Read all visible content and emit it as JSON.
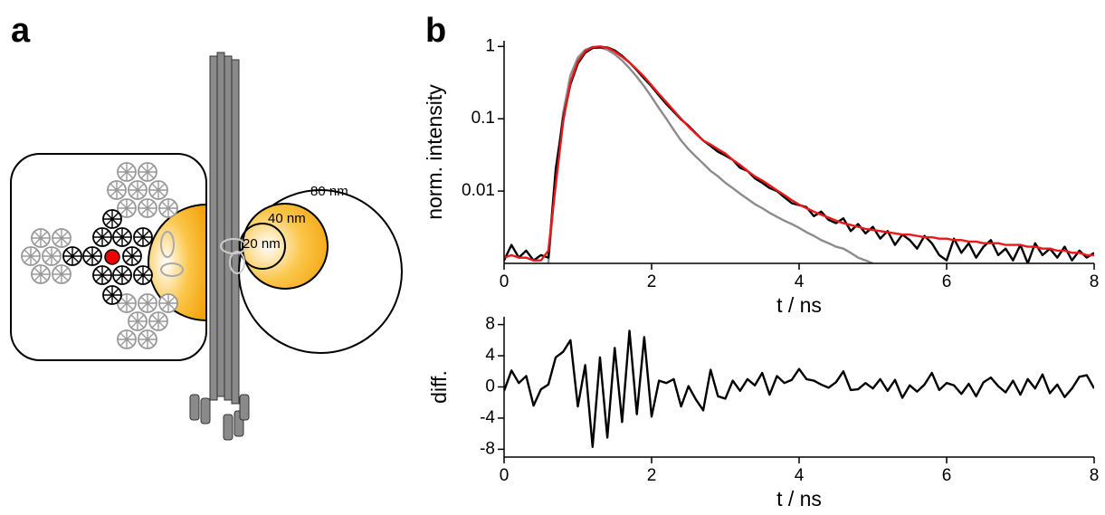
{
  "diagram": {
    "panel_label": "a",
    "labels": [
      "80 nm",
      "40 nm",
      "20 nm"
    ]
  },
  "chart_data": [
    {
      "type": "line",
      "panel_label": "b",
      "y_label": "norm. intensity",
      "x_label": "t / ns",
      "y_scale": "log",
      "xlim": [
        0,
        8
      ],
      "xticks": [
        0,
        2,
        4,
        6,
        8
      ],
      "ylim": [
        0.001,
        1.2
      ],
      "yticks": [
        0.01,
        0.1,
        1
      ],
      "x": [
        0,
        0.1,
        0.2,
        0.3,
        0.4,
        0.5,
        0.6,
        0.7,
        0.8,
        0.9,
        1,
        1.1,
        1.2,
        1.3,
        1.4,
        1.5,
        1.6,
        1.7,
        1.8,
        1.9,
        2,
        2.1,
        2.2,
        2.3,
        2.4,
        2.5,
        2.6,
        2.7,
        2.8,
        2.9,
        3,
        3.1,
        3.2,
        3.3,
        3.4,
        3.5,
        3.6,
        3.7,
        3.8,
        3.9,
        4,
        4.1,
        4.2,
        4.3,
        4.4,
        4.5,
        4.6,
        4.7,
        4.8,
        4.9,
        5,
        5.1,
        5.2,
        5.3,
        5.4,
        5.5,
        5.6,
        5.7,
        5.8,
        5.9,
        6,
        6.1,
        6.2,
        6.3,
        6.4,
        6.5,
        6.6,
        6.7,
        6.8,
        6.9,
        7,
        7.1,
        7.2,
        7.3,
        7.4,
        7.5,
        7.6,
        7.7,
        7.8,
        7.9,
        8
      ],
      "series": [
        {
          "color": "#8c8c8c",
          "values": [
            null,
            null,
            null,
            null,
            null,
            null,
            0.001,
            0.015,
            0.12,
            0.4,
            0.7,
            0.9,
            0.98,
            0.97,
            0.9,
            0.78,
            0.64,
            0.5,
            0.38,
            0.28,
            0.2,
            0.14,
            0.1,
            0.07,
            0.05,
            0.038,
            0.03,
            0.024,
            0.019,
            0.016,
            0.013,
            0.011,
            0.0092,
            0.0078,
            0.0066,
            0.0058,
            0.005,
            0.0044,
            0.0039,
            0.0035,
            0.0031,
            0.0027,
            0.0024,
            0.0021,
            0.0019,
            0.0017,
            0.0016,
            0.0014,
            0.0012,
            0.0011,
            0.001,
            null,
            null,
            null,
            null,
            null,
            null,
            null,
            null,
            null,
            null,
            null,
            null,
            null,
            null,
            null,
            null,
            null,
            null,
            null,
            null,
            null,
            null,
            null,
            null,
            null,
            null,
            null,
            null,
            null,
            null
          ]
        },
        {
          "color": "#000000",
          "values": [
            0.0011,
            0.0018,
            0.0012,
            0.0015,
            0.0011,
            0.0013,
            0.0012,
            0.02,
            0.1,
            0.3,
            0.58,
            0.82,
            0.95,
            0.97,
            0.97,
            0.88,
            0.74,
            0.6,
            0.47,
            0.36,
            0.28,
            0.21,
            0.16,
            0.125,
            0.098,
            0.08,
            0.063,
            0.05,
            0.042,
            0.035,
            0.031,
            0.027,
            0.021,
            0.019,
            0.015,
            0.013,
            0.011,
            0.01,
            0.0082,
            0.0068,
            0.0064,
            0.006,
            0.0045,
            0.0052,
            0.004,
            0.0036,
            0.0042,
            0.0028,
            0.0035,
            0.0026,
            0.0032,
            0.0022,
            0.0028,
            0.0018,
            0.0025,
            0.0021,
            0.0016,
            0.0024,
            0.0019,
            0.0013,
            0.0011,
            0.0022,
            0.0014,
            0.0019,
            0.0012,
            0.0017,
            0.0021,
            0.0013,
            0.0016,
            0.0011,
            0.0018,
            0.001,
            0.0019,
            0.0013,
            0.0016,
            0.0012,
            0.0017,
            0.0011,
            0.0015,
            0.0012,
            0.0014
          ]
        },
        {
          "color": "#e8191a",
          "values": [
            0.0012,
            0.0013,
            0.0012,
            0.0012,
            0.0011,
            0.0011,
            0.0015,
            0.012,
            0.09,
            0.32,
            0.62,
            0.86,
            0.98,
            1,
            0.96,
            0.85,
            0.72,
            0.6,
            0.48,
            0.38,
            0.29,
            0.22,
            0.17,
            0.13,
            0.1,
            0.078,
            0.062,
            0.05,
            0.044,
            0.038,
            0.033,
            0.027,
            0.023,
            0.019,
            0.016,
            0.014,
            0.012,
            0.0102,
            0.0088,
            0.0075,
            0.0065,
            0.0058,
            0.0052,
            0.0047,
            0.0043,
            0.0039,
            0.0036,
            0.0034,
            0.0032,
            0.003,
            0.0029,
            0.0028,
            0.0027,
            0.0026,
            0.0025,
            0.0025,
            0.0024,
            0.0023,
            0.0023,
            0.0022,
            0.0022,
            0.0021,
            0.0021,
            0.002,
            0.002,
            0.0019,
            0.0019,
            0.0019,
            0.0018,
            0.0018,
            0.0018,
            0.0017,
            0.0017,
            0.0016,
            0.0016,
            0.0015,
            0.0015,
            0.0014,
            0.0014,
            0.0013,
            0.0013
          ]
        }
      ]
    },
    {
      "type": "line",
      "y_label": "diff.",
      "x_label": "t / ns",
      "xlim": [
        0,
        8
      ],
      "xticks": [
        0,
        2,
        4,
        6,
        8
      ],
      "ylim": [
        -9,
        9
      ],
      "yticks": [
        -8,
        -4,
        0,
        4,
        8
      ],
      "x": [
        0,
        0.1,
        0.2,
        0.3,
        0.4,
        0.5,
        0.6,
        0.7,
        0.8,
        0.9,
        1,
        1.1,
        1.2,
        1.3,
        1.4,
        1.5,
        1.6,
        1.7,
        1.8,
        1.9,
        2,
        2.1,
        2.2,
        2.3,
        2.4,
        2.5,
        2.6,
        2.7,
        2.8,
        2.9,
        3,
        3.1,
        3.2,
        3.3,
        3.4,
        3.5,
        3.6,
        3.7,
        3.8,
        3.9,
        4,
        4.1,
        4.2,
        4.3,
        4.4,
        4.5,
        4.6,
        4.7,
        4.8,
        4.9,
        5,
        5.1,
        5.2,
        5.3,
        5.4,
        5.5,
        5.6,
        5.7,
        5.8,
        5.9,
        6,
        6.1,
        6.2,
        6.3,
        6.4,
        6.5,
        6.6,
        6.7,
        6.8,
        6.9,
        7,
        7.1,
        7.2,
        7.3,
        7.4,
        7.5,
        7.6,
        7.7,
        7.8,
        7.9,
        8
      ],
      "series": [
        {
          "color": "#000000",
          "values": [
            -0.5,
            2.1,
            0.5,
            1.4,
            -2.4,
            -0.3,
            0.3,
            3.8,
            4.5,
            6,
            -2.5,
            2.8,
            -7.7,
            3.8,
            -6.5,
            5,
            -4.5,
            7.2,
            -3.5,
            6.4,
            -3.8,
            0.8,
            0.5,
            1,
            -2.5,
            0.1,
            -1.6,
            -3,
            2.2,
            -1.2,
            -1.5,
            0.8,
            -0.5,
            1,
            0.2,
            1.8,
            -1,
            1.4,
            0.5,
            0.9,
            2.3,
            1,
            0.8,
            0.3,
            -0.1,
            0.6,
            2,
            -0.4,
            -0.3,
            0.5,
            -0.2,
            1,
            -0.5,
            0.9,
            -1.4,
            0.2,
            -0.6,
            0.3,
            1.8,
            -0.4,
            0.5,
            0.2,
            -0.9,
            0.4,
            -1.2,
            0.6,
            1.2,
            0.1,
            -0.7,
            0.8,
            -1,
            1,
            -0.2,
            1.6,
            -0.8,
            0.3,
            -1.3,
            -0.2,
            1.3,
            1.5,
            -0.2
          ]
        }
      ]
    }
  ]
}
